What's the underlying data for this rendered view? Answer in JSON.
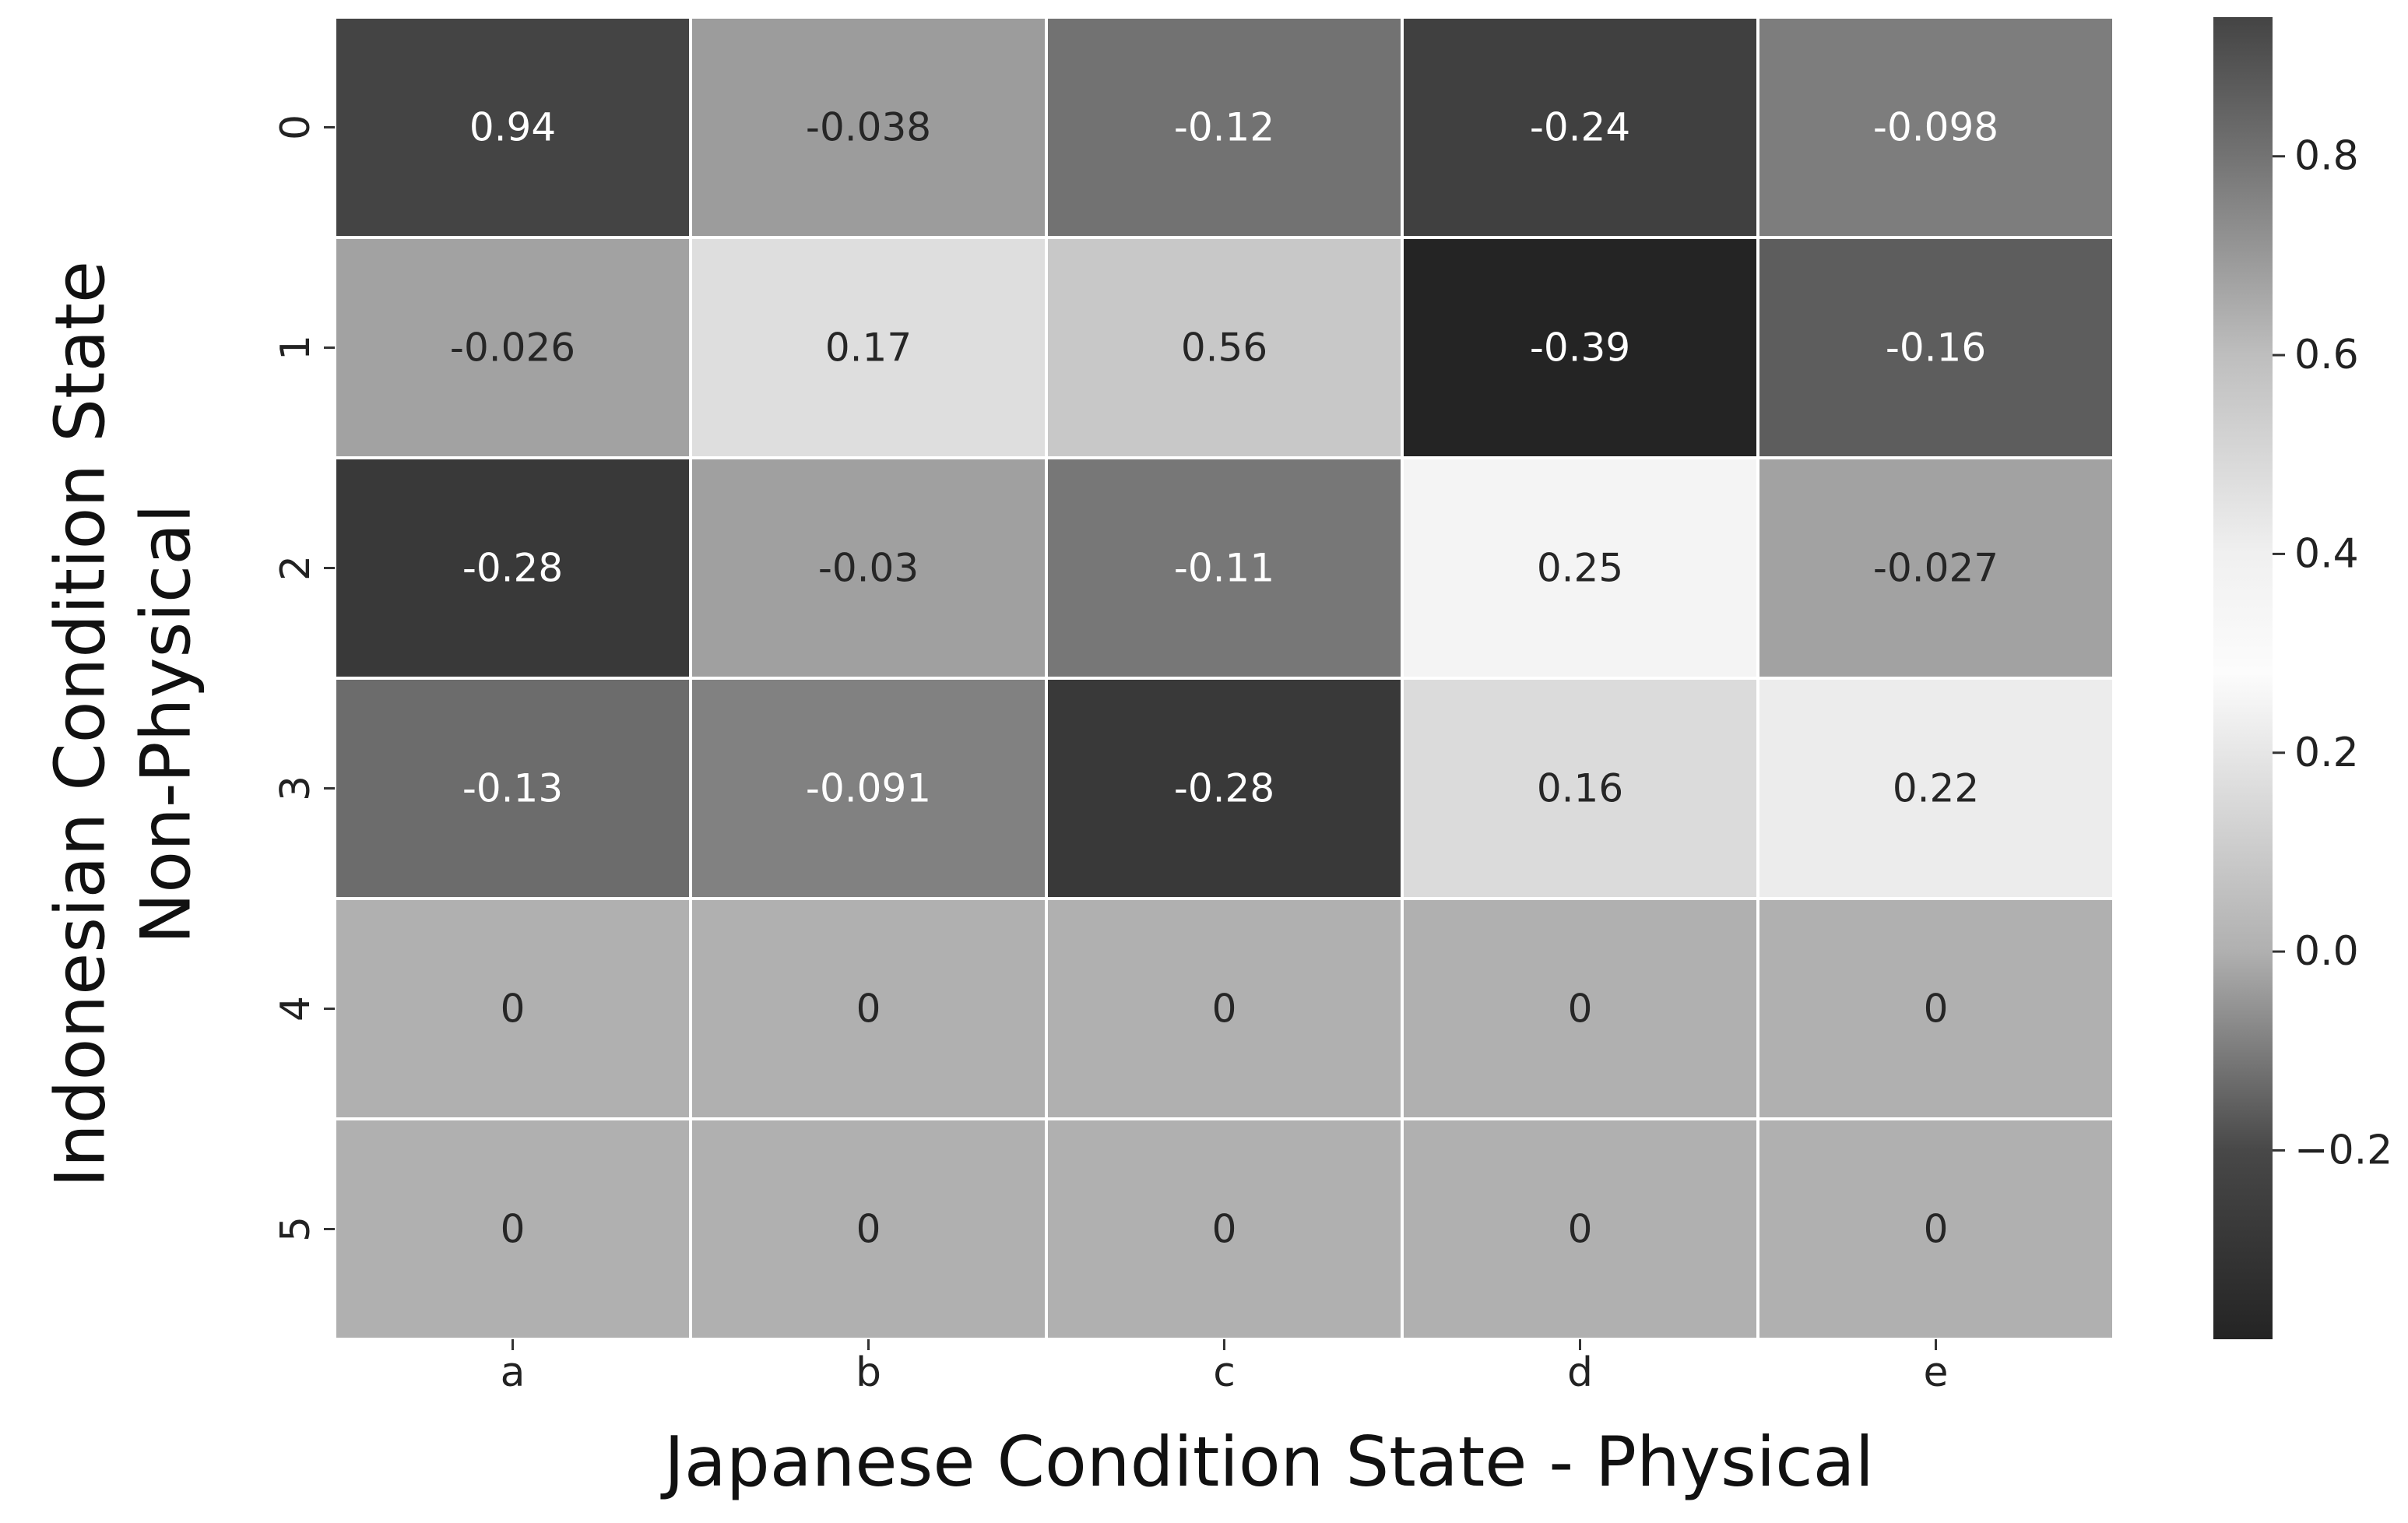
{
  "chart_data": {
    "type": "heatmap",
    "x_categories": [
      "a",
      "b",
      "c",
      "d",
      "e"
    ],
    "y_categories": [
      "0",
      "1",
      "2",
      "3",
      "4",
      "5"
    ],
    "values": [
      [
        0.94,
        -0.038,
        -0.12,
        -0.24,
        -0.098
      ],
      [
        -0.026,
        0.17,
        0.56,
        -0.39,
        -0.16
      ],
      [
        -0.28,
        -0.03,
        -0.11,
        0.25,
        -0.027
      ],
      [
        -0.13,
        -0.091,
        -0.28,
        0.16,
        0.22
      ],
      [
        0,
        0,
        0,
        0,
        0
      ],
      [
        0,
        0,
        0,
        0,
        0
      ]
    ],
    "cell_labels": [
      [
        "0.94",
        "-0.038",
        "-0.12",
        "-0.24",
        "-0.098"
      ],
      [
        "-0.026",
        "0.17",
        "0.56",
        "-0.39",
        "-0.16"
      ],
      [
        "-0.28",
        "-0.03",
        "-0.11",
        "0.25",
        "-0.027"
      ],
      [
        "-0.13",
        "-0.091",
        "-0.28",
        "0.16",
        "0.22"
      ],
      [
        "0",
        "0",
        "0",
        "0",
        "0"
      ],
      [
        "0",
        "0",
        "0",
        "0",
        "0"
      ]
    ],
    "xlabel": "Japanese Condition State - Physical",
    "ylabel_lines": [
      "Indonesian Condition State",
      "Non-Physical"
    ],
    "colorbar": {
      "range": [
        -0.39,
        0.94
      ],
      "ticks": [
        0.8,
        0.6,
        0.4,
        0.2,
        0.0,
        -0.2
      ],
      "tick_labels": [
        "0.8",
        "0.6",
        "0.4",
        "0.2",
        "0.0",
        "−0.2"
      ],
      "colormap": "diverging gray (dark at both ends, light near 0.3)"
    }
  }
}
